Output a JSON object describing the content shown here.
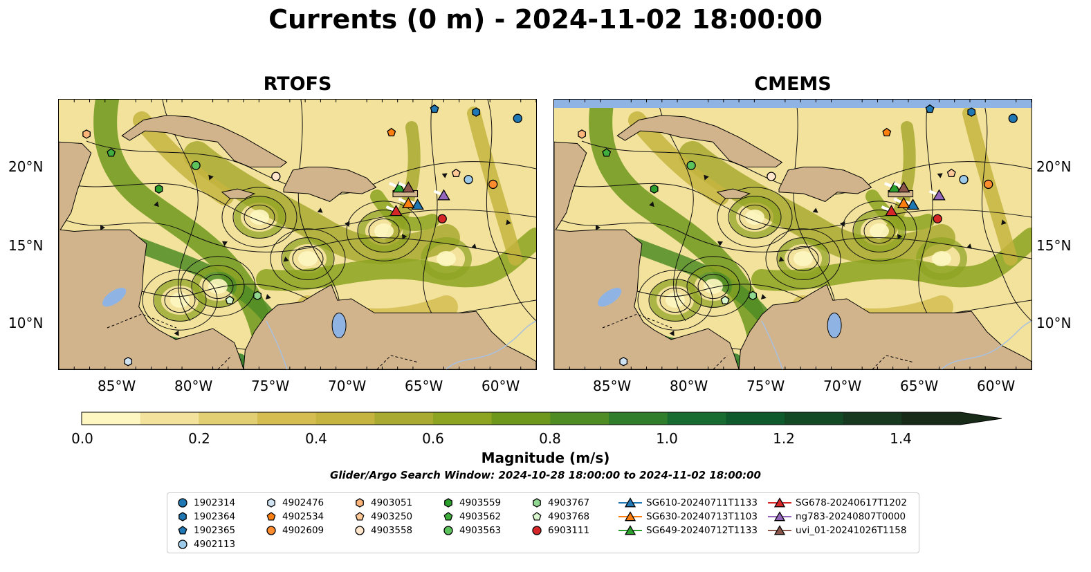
{
  "title": "Currents (0 m) - 2024-11-02 18:00:00",
  "panels": [
    {
      "title": "RTOFS"
    },
    {
      "title": "CMEMS"
    }
  ],
  "axes": {
    "lon_ticks": [
      "85°W",
      "80°W",
      "75°W",
      "70°W",
      "65°W",
      "60°W"
    ],
    "lat_ticks": [
      "20°N",
      "15°N",
      "10°N"
    ]
  },
  "colorbar": {
    "label": "Magnitude (m/s)",
    "ticks": [
      "0.0",
      "0.2",
      "0.4",
      "0.6",
      "0.8",
      "1.0",
      "1.2",
      "1.4"
    ],
    "min": 0.0,
    "max": 1.5,
    "step": 0.1,
    "extend": "max",
    "colors": [
      "#fef7c2",
      "#f2e29b",
      "#e3cf73",
      "#d5bd52",
      "#c5b43f",
      "#a9aa31",
      "#8da322",
      "#6e981c",
      "#4f8c24",
      "#2f7e2c",
      "#186b31",
      "#0f5a2c",
      "#144926",
      "#17391f",
      "#172b18"
    ]
  },
  "search_window": "Glider/Argo Search Window: 2024-10-28 18:00:00 to 2024-11-02 18:00:00",
  "legend": {
    "columns": [
      [
        {
          "label": "1902314",
          "marker": "circle",
          "color": "#1f77b4"
        },
        {
          "label": "1902364",
          "marker": "hexagon",
          "color": "#1f77b4"
        },
        {
          "label": "1902365",
          "marker": "pentagon",
          "color": "#1f77b4"
        },
        {
          "label": "4902113",
          "marker": "circle",
          "color": "#9ccae8"
        }
      ],
      [
        {
          "label": "4902476",
          "marker": "hexagon",
          "color": "#cfe3f2"
        },
        {
          "label": "4902534",
          "marker": "pentagon",
          "color": "#ff7f0e"
        },
        {
          "label": "4902609",
          "marker": "circle",
          "color": "#ff8c2e"
        }
      ],
      [
        {
          "label": "4903051",
          "marker": "hexagon",
          "color": "#ffb47a"
        },
        {
          "label": "4903250",
          "marker": "pentagon",
          "color": "#ffc896"
        },
        {
          "label": "4903558",
          "marker": "circle",
          "color": "#ffe6cc"
        }
      ],
      [
        {
          "label": "4903559",
          "marker": "hexagon",
          "color": "#2ca02c"
        },
        {
          "label": "4903562",
          "marker": "pentagon",
          "color": "#3fae3f"
        },
        {
          "label": "4903563",
          "marker": "circle",
          "color": "#5cc25c"
        }
      ],
      [
        {
          "label": "4903767",
          "marker": "hexagon",
          "color": "#90d890"
        },
        {
          "label": "4903768",
          "marker": "pentagon",
          "color": "#d8f5cc"
        },
        {
          "label": "6903111",
          "marker": "circle",
          "color": "#d62728"
        }
      ],
      [
        {
          "label": "SG610-20240711T1133",
          "marker": "triangle",
          "color": "#1f77b4"
        },
        {
          "label": "SG630-20240713T1103",
          "marker": "triangle",
          "color": "#ff7f0e"
        },
        {
          "label": "SG649-20240712T1133",
          "marker": "triangle",
          "color": "#2ca02c"
        }
      ],
      [
        {
          "label": "SG678-20240617T1202",
          "marker": "triangle",
          "color": "#d62728"
        },
        {
          "label": "ng783-20240807T0000",
          "marker": "triangle",
          "color": "#9467bd"
        },
        {
          "label": "uvi_01-20241026T1158",
          "marker": "triangle",
          "color": "#8c564b"
        }
      ]
    ]
  },
  "map_colors": {
    "land": "#d2b48c",
    "lake": "#8fb4e3",
    "river": "#a8c0e0",
    "no_data": "#8fb4e3"
  },
  "extent": {
    "lon": [
      -89,
      -58
    ],
    "lat": [
      7,
      24.2
    ]
  },
  "floats": [
    {
      "id": "1902314",
      "lon": -59.2,
      "lat": 23.0
    },
    {
      "id": "1902364",
      "lon": -61.9,
      "lat": 23.4
    },
    {
      "id": "1902365",
      "lon": -64.6,
      "lat": 23.6
    },
    {
      "id": "4902113",
      "lon": -62.4,
      "lat": 19.1
    },
    {
      "id": "4902476",
      "lon": -84.5,
      "lat": 7.5
    },
    {
      "id": "4902534",
      "lon": -67.4,
      "lat": 22.1
    },
    {
      "id": "4902609",
      "lon": -60.8,
      "lat": 18.8
    },
    {
      "id": "4903051",
      "lon": -87.2,
      "lat": 22.0
    },
    {
      "id": "4903250",
      "lon": -63.2,
      "lat": 19.5
    },
    {
      "id": "4903558",
      "lon": -74.9,
      "lat": 19.3
    },
    {
      "id": "4903559",
      "lon": -82.5,
      "lat": 18.5
    },
    {
      "id": "4903562",
      "lon": -85.6,
      "lat": 20.8
    },
    {
      "id": "4903563",
      "lon": -80.1,
      "lat": 20.0
    },
    {
      "id": "4903767",
      "lon": -76.1,
      "lat": 11.7
    },
    {
      "id": "4903768",
      "lon": -77.9,
      "lat": 11.4
    },
    {
      "id": "6903111",
      "lon": -64.1,
      "lat": 16.6
    }
  ],
  "gliders": [
    {
      "id": "SG610-20240711T1133",
      "lon": -65.7,
      "lat": 17.5
    },
    {
      "id": "SG630-20240713T1103",
      "lon": -66.3,
      "lat": 17.6
    },
    {
      "id": "SG649-20240712T1133",
      "lon": -66.9,
      "lat": 18.6
    },
    {
      "id": "SG678-20240617T1202",
      "lon": -67.1,
      "lat": 17.1
    },
    {
      "id": "ng783-20240807T0000",
      "lon": -64.0,
      "lat": 18.1
    },
    {
      "id": "uvi_01-20241026T1158",
      "lon": -66.3,
      "lat": 18.6
    }
  ]
}
